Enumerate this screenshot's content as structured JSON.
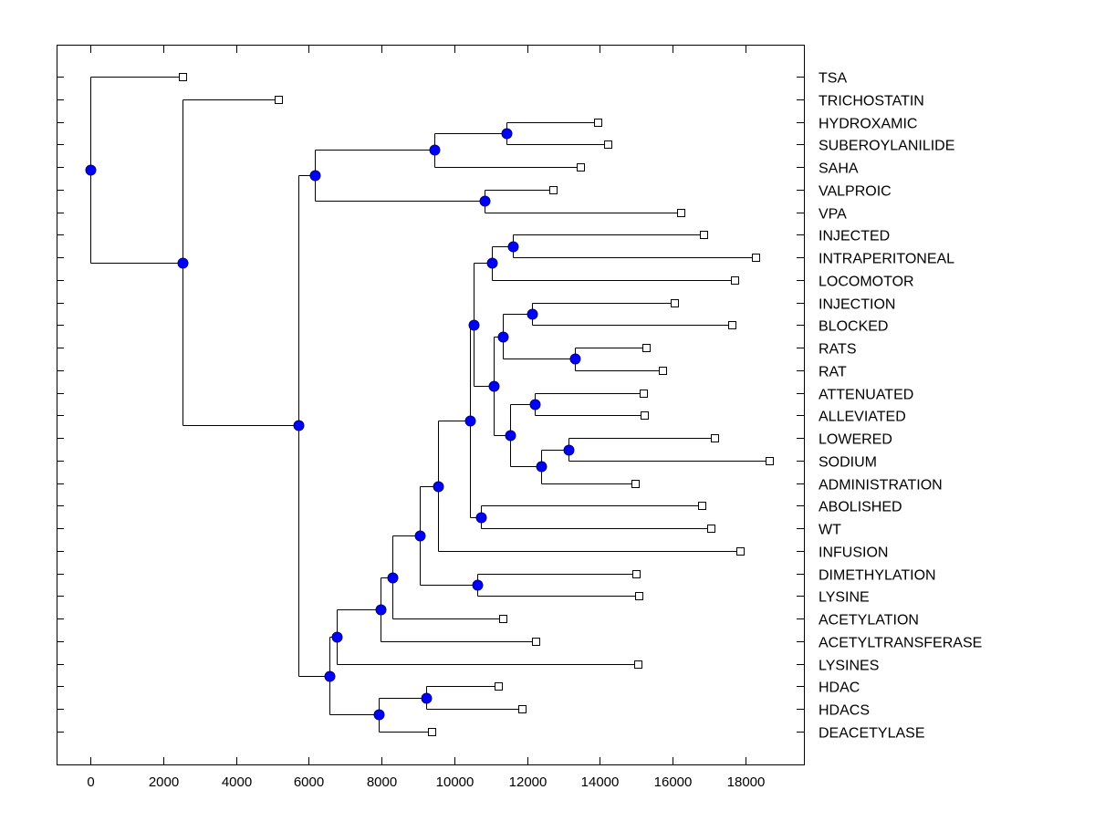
{
  "chart_data": {
    "type": "dendrogram",
    "title": "",
    "xlabel": "",
    "ylabel": "",
    "xlim": [
      -1000,
      19800
    ],
    "xticks": [
      0,
      2000,
      4000,
      6000,
      8000,
      10000,
      12000,
      14000,
      16000,
      18000
    ],
    "xtick_labels": [
      "0",
      "2000",
      "4000",
      "6000",
      "8000",
      "10000",
      "12000",
      "14000",
      "16000",
      "18000"
    ],
    "grid": false,
    "orientation": "left-to-right, leaf labels on right",
    "colors": {
      "node_fill": "#0000ff",
      "node_stroke": "#000080",
      "leaf_fill": "#ffffff",
      "line": "#000000"
    },
    "leaves": [
      {
        "label": "TSA",
        "value": 2530
      },
      {
        "label": "TRICHOSTATIN",
        "value": 5160
      },
      {
        "label": "HYDROXAMIC",
        "value": 13940
      },
      {
        "label": "SUBEROYLANILIDE",
        "value": 14210
      },
      {
        "label": "SAHA",
        "value": 13460
      },
      {
        "label": "VALPROIC",
        "value": 12710
      },
      {
        "label": "VPA",
        "value": 16220
      },
      {
        "label": "INJECTED",
        "value": 16850
      },
      {
        "label": "INTRAPERITONEAL",
        "value": 18280
      },
      {
        "label": "LOCOMOTOR",
        "value": 17700
      },
      {
        "label": "INJECTION",
        "value": 16040
      },
      {
        "label": "BLOCKED",
        "value": 17620
      },
      {
        "label": "RATS",
        "value": 15270
      },
      {
        "label": "RAT",
        "value": 15720
      },
      {
        "label": "ATTENUATED",
        "value": 15190
      },
      {
        "label": "ALLEVIATED",
        "value": 15220
      },
      {
        "label": "LOWERED",
        "value": 17150
      },
      {
        "label": "SODIUM",
        "value": 18650
      },
      {
        "label": "ADMINISTRATION",
        "value": 14970
      },
      {
        "label": "ABOLISHED",
        "value": 16800
      },
      {
        "label": "WT",
        "value": 17050
      },
      {
        "label": "INFUSION",
        "value": 17850
      },
      {
        "label": "DIMETHYLATION",
        "value": 14990
      },
      {
        "label": "LYSINE",
        "value": 15070
      },
      {
        "label": "ACETYLATION",
        "value": 11330
      },
      {
        "label": "ACETYLTRANSFERASE",
        "value": 12230
      },
      {
        "label": "LYSINES",
        "value": 15040
      },
      {
        "label": "HDAC",
        "value": 11210
      },
      {
        "label": "HDACS",
        "value": 11860
      },
      {
        "label": "DEACETYLASE",
        "value": 9380
      }
    ],
    "tree": {
      "value": 0,
      "children": [
        {
          "leaf": 0
        },
        {
          "value": 2530,
          "children": [
            {
              "leaf": 1
            },
            {
              "value": 5720,
              "children": [
                {
                  "value": 6170,
                  "children": [
                    {
                      "value": 9450,
                      "children": [
                        {
                          "value": 11430,
                          "children": [
                            {
                              "leaf": 2
                            },
                            {
                              "leaf": 3
                            }
                          ]
                        },
                        {
                          "leaf": 4
                        }
                      ]
                    },
                    {
                      "value": 10830,
                      "children": [
                        {
                          "leaf": 5
                        },
                        {
                          "leaf": 6
                        }
                      ]
                    }
                  ]
                },
                {
                  "value": 6570,
                  "children": [
                    {
                      "value": 6770,
                      "children": [
                        {
                          "value": 7970,
                          "children": [
                            {
                              "value": 8300,
                              "children": [
                                {
                                  "value": 9050,
                                  "children": [
                                    {
                                      "value": 9550,
                                      "children": [
                                        {
                                          "value": 10430,
                                          "children": [
                                            {
                                              "value": 10530,
                                              "children": [
                                                {
                                                  "value": 11030,
                                                  "children": [
                                                    {
                                                      "value": 11610,
                                                      "children": [
                                                        {
                                                          "leaf": 7
                                                        },
                                                        {
                                                          "leaf": 8
                                                        }
                                                      ]
                                                    },
                                                    {
                                                      "leaf": 9
                                                    }
                                                  ]
                                                },
                                                {
                                                  "value": 11080,
                                                  "children": [
                                                    {
                                                      "value": 11330,
                                                      "children": [
                                                        {
                                                          "value": 12130,
                                                          "children": [
                                                            {
                                                              "leaf": 10
                                                            },
                                                            {
                                                              "leaf": 11
                                                            }
                                                          ]
                                                        },
                                                        {
                                                          "value": 13310,
                                                          "children": [
                                                            {
                                                              "leaf": 12
                                                            },
                                                            {
                                                              "leaf": 13
                                                            }
                                                          ]
                                                        }
                                                      ]
                                                    },
                                                    {
                                                      "value": 11530,
                                                      "children": [
                                                        {
                                                          "value": 12210,
                                                          "children": [
                                                            {
                                                              "leaf": 14
                                                            },
                                                            {
                                                              "leaf": 15
                                                            }
                                                          ]
                                                        },
                                                        {
                                                          "value": 12380,
                                                          "children": [
                                                            {
                                                              "value": 13140,
                                                              "children": [
                                                                {
                                                                  "leaf": 16
                                                                },
                                                                {
                                                                  "leaf": 17
                                                                }
                                                              ]
                                                            },
                                                            {
                                                              "leaf": 18
                                                            }
                                                          ]
                                                        }
                                                      ]
                                                    }
                                                  ]
                                                }
                                              ]
                                            },
                                            {
                                              "value": 10730,
                                              "children": [
                                                {
                                                  "leaf": 19
                                                },
                                                {
                                                  "leaf": 20
                                                }
                                              ]
                                            }
                                          ]
                                        },
                                        {
                                          "leaf": 21
                                        }
                                      ]
                                    },
                                    {
                                      "value": 10630,
                                      "children": [
                                        {
                                          "leaf": 22
                                        },
                                        {
                                          "leaf": 23
                                        }
                                      ]
                                    }
                                  ]
                                },
                                {
                                  "leaf": 24
                                }
                              ]
                            },
                            {
                              "leaf": 25
                            }
                          ]
                        },
                        {
                          "leaf": 26
                        }
                      ]
                    },
                    {
                      "value": 7920,
                      "children": [
                        {
                          "value": 9230,
                          "children": [
                            {
                              "leaf": 27
                            },
                            {
                              "leaf": 28
                            }
                          ]
                        },
                        {
                          "leaf": 29
                        }
                      ]
                    }
                  ]
                }
              ]
            }
          ]
        }
      ]
    }
  }
}
